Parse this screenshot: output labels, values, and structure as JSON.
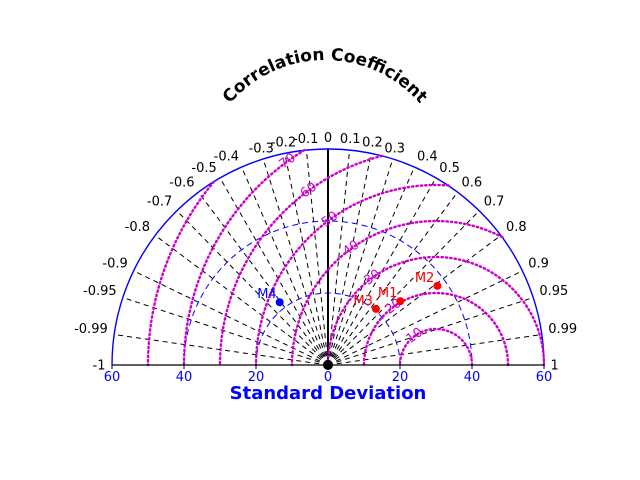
{
  "chart_data": {
    "type": "scatter",
    "subtype": "taylor-diagram",
    "title": "",
    "corr_axis_title": "Correlation Coefficient",
    "xlabel": "Standard Deviation",
    "sd_range": [
      -60,
      60
    ],
    "sd_ticks": [
      60,
      40,
      20,
      0,
      20,
      40,
      60
    ],
    "sd_tick_values": [
      -60,
      -40,
      -20,
      0,
      20,
      40,
      60
    ],
    "sd_arcs": [
      20,
      40,
      60
    ],
    "corr_ticks": [
      {
        "label": "-1",
        "value": -1
      },
      {
        "label": "-0.99",
        "value": -0.99
      },
      {
        "label": "-0.95",
        "value": -0.95
      },
      {
        "label": "-0.9",
        "value": -0.9
      },
      {
        "label": "-0.8",
        "value": -0.8
      },
      {
        "label": "-0.7",
        "value": -0.7
      },
      {
        "label": "-0.6",
        "value": -0.6
      },
      {
        "label": "-0.5",
        "value": -0.5
      },
      {
        "label": "-0.4",
        "value": -0.4
      },
      {
        "label": "-0.3",
        "value": -0.3
      },
      {
        "label": "-0.2",
        "value": -0.2
      },
      {
        "label": "-0.1",
        "value": -0.1
      },
      {
        "label": "0",
        "value": 0
      },
      {
        "label": "0.1",
        "value": 0.1
      },
      {
        "label": "0.2",
        "value": 0.2
      },
      {
        "label": "0.3",
        "value": 0.3
      },
      {
        "label": "0.4",
        "value": 0.4
      },
      {
        "label": "0.5",
        "value": 0.5
      },
      {
        "label": "0.6",
        "value": 0.6
      },
      {
        "label": "0.7",
        "value": 0.7
      },
      {
        "label": "0.8",
        "value": 0.8
      },
      {
        "label": "0.9",
        "value": 0.9
      },
      {
        "label": "0.95",
        "value": 0.95
      },
      {
        "label": "0.99",
        "value": 0.99
      },
      {
        "label": "1",
        "value": 1
      }
    ],
    "reference_sd": 30,
    "rms_contours": [
      {
        "value": 10,
        "label": "10"
      },
      {
        "value": 20,
        "label": "20"
      },
      {
        "value": 30,
        "label": "30"
      },
      {
        "value": 40,
        "label": "40"
      },
      {
        "value": 50,
        "label": "50"
      },
      {
        "value": 60,
        "label": "60"
      },
      {
        "value": 70,
        "label": "70"
      },
      {
        "value": 80,
        "label": "80"
      }
    ],
    "points": [
      {
        "label": "M1",
        "sd": 26.8,
        "corr": 0.75,
        "color": "#ff0000"
      },
      {
        "label": "M2",
        "sd": 37.5,
        "corr": 0.81,
        "color": "#ff0000"
      },
      {
        "label": "M3",
        "sd": 20.5,
        "corr": 0.65,
        "color": "#ff0000"
      },
      {
        "label": "M4",
        "sd": 22.0,
        "corr": -0.61,
        "color": "#0000ff"
      }
    ],
    "colors": {
      "axis": "#0000ff",
      "rms": "#cc00cc",
      "radial": "#000000",
      "model": "#ff0000",
      "model_negative": "#0000ff"
    }
  }
}
